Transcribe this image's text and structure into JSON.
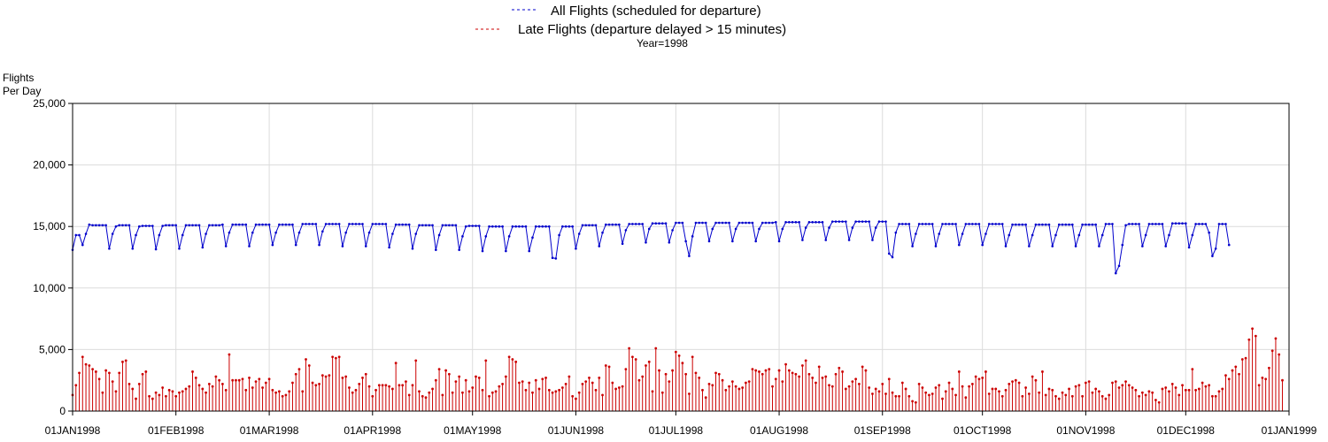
{
  "chart_data": {
    "type": "line",
    "legend": {
      "position": "top-center",
      "entries": [
        {
          "name": "All Flights (scheduled for departure)",
          "color": "#0000cc",
          "line_style": "dashed"
        },
        {
          "name": "Late Flights (departure delayed > 15 minutes)",
          "color": "#cc0000",
          "line_style": "dashed"
        }
      ]
    },
    "by_label": "Year=1998",
    "ylabel_line1": "Flights",
    "ylabel_line2": "Per Day",
    "ylim": [
      0,
      25000
    ],
    "yticks": [
      {
        "value": 0,
        "label": "0"
      },
      {
        "value": 5000,
        "label": "5,000"
      },
      {
        "value": 10000,
        "label": "10,000"
      },
      {
        "value": 15000,
        "label": "15,000"
      },
      {
        "value": 20000,
        "label": "20,000"
      },
      {
        "value": 25000,
        "label": "25,000"
      }
    ],
    "xlim": [
      "1998-01-01",
      "1999-01-01"
    ],
    "xticks": [
      {
        "date": "1998-01-01",
        "label": "01JAN1998"
      },
      {
        "date": "1998-02-01",
        "label": "01FEB1998"
      },
      {
        "date": "1998-03-01",
        "label": "01MAR1998"
      },
      {
        "date": "1998-04-01",
        "label": "01APR1998"
      },
      {
        "date": "1998-05-01",
        "label": "01MAY1998"
      },
      {
        "date": "1998-06-01",
        "label": "01JUN1998"
      },
      {
        "date": "1998-07-01",
        "label": "01JUL1998"
      },
      {
        "date": "1998-08-01",
        "label": "01AUG1998"
      },
      {
        "date": "1998-09-01",
        "label": "01SEP1998"
      },
      {
        "date": "1998-10-01",
        "label": "01OCT1998"
      },
      {
        "date": "1998-11-01",
        "label": "01NOV1998"
      },
      {
        "date": "1998-12-01",
        "label": "01DEC1998"
      },
      {
        "date": "1999-01-01",
        "label": "01JAN1999"
      }
    ],
    "grid": true,
    "series": [
      {
        "name": "All Flights (scheduled for departure)",
        "color": "#0000cc",
        "style": "line-with-markers",
        "start_date": "1998-01-01",
        "values": [
          13100,
          14300,
          14300,
          13500,
          14400,
          15150,
          15100,
          15100,
          15100,
          15100,
          15100,
          13200,
          14400,
          15000,
          15100,
          15100,
          15100,
          15100,
          13200,
          14300,
          15000,
          15050,
          15050,
          15050,
          15050,
          13150,
          14300,
          15050,
          15100,
          15100,
          15100,
          15100,
          13200,
          14300,
          15100,
          15100,
          15100,
          15100,
          15100,
          13300,
          14400,
          15100,
          15100,
          15100,
          15100,
          15150,
          13400,
          14500,
          15150,
          15150,
          15150,
          15150,
          15150,
          13400,
          14500,
          15150,
          15150,
          15150,
          15150,
          15150,
          13500,
          14500,
          15150,
          15150,
          15150,
          15150,
          15150,
          13500,
          14500,
          15200,
          15200,
          15200,
          15200,
          15200,
          13500,
          14600,
          15200,
          15200,
          15200,
          15200,
          15200,
          13400,
          14500,
          15200,
          15200,
          15200,
          15200,
          15200,
          13400,
          14500,
          15200,
          15200,
          15200,
          15200,
          15200,
          13300,
          14400,
          15150,
          15150,
          15150,
          15150,
          15150,
          13200,
          14400,
          15100,
          15100,
          15100,
          15100,
          15100,
          13100,
          14300,
          15100,
          15100,
          15100,
          15100,
          15100,
          13100,
          14200,
          15000,
          15050,
          15050,
          15050,
          15050,
          13000,
          14200,
          15000,
          15000,
          15000,
          15000,
          15000,
          13000,
          14200,
          15000,
          15000,
          15000,
          15000,
          15000,
          13000,
          14100,
          15000,
          15000,
          15000,
          15000,
          15000,
          12450,
          12400,
          14300,
          15000,
          15000,
          15000,
          15000,
          13200,
          14400,
          15100,
          15100,
          15100,
          15100,
          15100,
          13400,
          14500,
          15150,
          15150,
          15150,
          15150,
          15150,
          13600,
          14700,
          15200,
          15200,
          15200,
          15200,
          15200,
          13700,
          14800,
          15250,
          15250,
          15250,
          15250,
          15250,
          13700,
          14700,
          15300,
          15300,
          15300,
          13800,
          12600,
          14200,
          15300,
          15300,
          15300,
          15300,
          13800,
          14800,
          15300,
          15300,
          15300,
          15300,
          15300,
          13800,
          14800,
          15300,
          15300,
          15300,
          15300,
          15300,
          13800,
          14800,
          15300,
          15300,
          15300,
          15300,
          15350,
          13800,
          14800,
          15350,
          15350,
          15350,
          15350,
          15350,
          13900,
          14900,
          15350,
          15350,
          15350,
          15350,
          15350,
          13900,
          14900,
          15400,
          15400,
          15400,
          15400,
          15400,
          13900,
          14900,
          15400,
          15400,
          15400,
          15400,
          15400,
          13900,
          14900,
          15400,
          15400,
          15400,
          12800,
          12500,
          14500,
          15200,
          15200,
          15200,
          15200,
          13400,
          14400,
          15200,
          15200,
          15200,
          15200,
          15200,
          13400,
          14400,
          15200,
          15200,
          15200,
          15200,
          15200,
          13500,
          14400,
          15200,
          15200,
          15200,
          15200,
          15200,
          13500,
          14400,
          15200,
          15200,
          15200,
          15200,
          15200,
          13400,
          14300,
          15150,
          15150,
          15150,
          15150,
          15150,
          13400,
          14300,
          15150,
          15150,
          15150,
          15150,
          15150,
          13400,
          14300,
          15150,
          15150,
          15150,
          15150,
          15150,
          13400,
          14300,
          15150,
          15150,
          15150,
          15150,
          15150,
          13400,
          14300,
          15200,
          15200,
          15200,
          11200,
          11800,
          13500,
          15100,
          15200,
          15200,
          15200,
          15200,
          13400,
          14300,
          15200,
          15200,
          15200,
          15200,
          15200,
          13400,
          14300,
          15250,
          15250,
          15250,
          15250,
          15250,
          13300,
          14300,
          15200,
          15200,
          15200,
          15200,
          14500,
          12600,
          13200,
          15200,
          15200,
          15200,
          13500
        ]
      },
      {
        "name": "Late Flights (departure delayed > 15 minutes)",
        "color": "#cc0000",
        "style": "needle",
        "start_date": "1998-01-01",
        "values": [
          1300,
          2100,
          3100,
          4400,
          3800,
          3700,
          3400,
          3200,
          2600,
          1500,
          3300,
          3100,
          2400,
          1600,
          3100,
          4000,
          4100,
          2200,
          1800,
          1000,
          2200,
          3000,
          3200,
          1200,
          1000,
          1500,
          1300,
          1900,
          1200,
          1700,
          1600,
          1200,
          1500,
          1600,
          1800,
          2000,
          3200,
          2700,
          2100,
          1800,
          1500,
          2200,
          2000,
          2800,
          2500,
          2200,
          1700,
          4600,
          2500,
          2500,
          2500,
          2600,
          1700,
          2700,
          1900,
          2400,
          2600,
          1900,
          2300,
          2600,
          1700,
          1500,
          1600,
          1200,
          1300,
          1600,
          2300,
          3000,
          3400,
          1600,
          4200,
          3700,
          2300,
          2100,
          2200,
          2900,
          2800,
          2900,
          4400,
          4300,
          4400,
          2700,
          2800,
          1900,
          1500,
          1700,
          2200,
          2700,
          3000,
          2000,
          1200,
          1700,
          2100,
          2100,
          2100,
          2000,
          1800,
          3900,
          2100,
          2100,
          2400,
          1300,
          2100,
          4100,
          1600,
          1200,
          1100,
          1500,
          1800,
          2500,
          3400,
          1300,
          3300,
          3000,
          1500,
          2400,
          2800,
          1500,
          2500,
          1600,
          1900,
          2800,
          2700,
          1700,
          4100,
          1200,
          1500,
          1600,
          2000,
          2200,
          2800,
          4400,
          4200,
          4000,
          2300,
          2400,
          1700,
          2300,
          1500,
          2500,
          1800,
          2600,
          2700,
          1700,
          1500,
          1600,
          1700,
          1900,
          2200,
          2800,
          1200,
          1000,
          1500,
          2200,
          2400,
          2700,
          2300,
          1700,
          2700,
          1300,
          3700,
          3600,
          2300,
          1800,
          1900,
          2000,
          3400,
          5100,
          4400,
          4200,
          2500,
          2800,
          3700,
          4000,
          1600,
          5100,
          3300,
          1500,
          3000,
          2400,
          3300,
          4800,
          4500,
          3900,
          3000,
          1400,
          4400,
          3100,
          2700,
          1700,
          1100,
          2200,
          2100,
          3100,
          3000,
          2500,
          1700,
          2000,
          2400,
          2000,
          1800,
          1900,
          2300,
          2400,
          3400,
          3300,
          3200,
          3000,
          3300,
          3400,
          2000,
          2600,
          3300,
          2400,
          3800,
          3300,
          3100,
          3000,
          2800,
          3700,
          4100,
          3000,
          2700,
          2300,
          3600,
          2700,
          2800,
          2100,
          2000,
          3000,
          3500,
          3200,
          1800,
          2000,
          2400,
          2600,
          2200,
          3600,
          3300,
          1900,
          1400,
          1800,
          1600,
          2200,
          1400,
          2600,
          1500,
          1200,
          1200,
          2300,
          1800,
          1200,
          800,
          700,
          2200,
          1900,
          1500,
          1300,
          1400,
          1900,
          2100,
          1000,
          1600,
          2300,
          1800,
          1300,
          3200,
          2000,
          1100,
          2000,
          2200,
          2800,
          2600,
          2700,
          3200,
          1400,
          1800,
          1800,
          1600,
          1200,
          1700,
          2200,
          2400,
          2500,
          2300,
          1200,
          1900,
          1400,
          2800,
          2500,
          1500,
          3200,
          1300,
          1800,
          1700,
          1200,
          1000,
          1500,
          1300,
          1800,
          1200,
          2000,
          2100,
          1200,
          2300,
          2400,
          1500,
          1800,
          1600,
          1200,
          1000,
          1300,
          2300,
          2400,
          1900,
          2100,
          2400,
          2100,
          1900,
          1700,
          1200,
          1500,
          1300,
          1600,
          1500,
          900,
          700,
          1800,
          1900,
          1600,
          2200,
          1900,
          1300,
          2100,
          1700,
          1700,
          3400,
          1700,
          1800,
          2300,
          2000,
          2100,
          1200,
          1200,
          1600,
          1800,
          2900,
          2600,
          3300,
          3600,
          3000,
          4200,
          4300,
          5800,
          6700,
          6100,
          2100,
          2700,
          2600,
          3500,
          4900,
          5900,
          4600,
          2500
        ]
      }
    ]
  }
}
